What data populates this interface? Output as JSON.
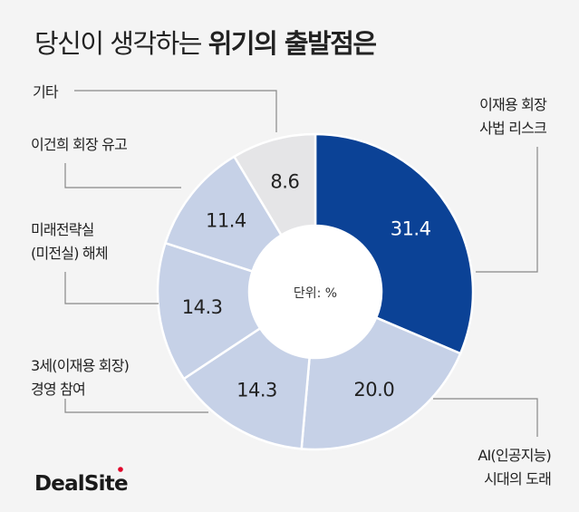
{
  "chart_data": {
    "type": "pie",
    "variant": "donut",
    "title_regular": "당신이 생각하는 ",
    "title_bold": "위기의 출발점은",
    "unit_label": "단위: %",
    "start": "top",
    "direction": "clockwise",
    "slices": [
      {
        "label_lines": [
          "이재용 회장",
          "사법 리스크"
        ],
        "value": 31.4,
        "value_text": "31.4",
        "color": "#0b4296"
      },
      {
        "label_lines": [
          "AI(인공지능)",
          "시대의 도래"
        ],
        "value": 20.0,
        "value_text": "20.0",
        "color": "#c6d1e7"
      },
      {
        "label_lines": [
          "3세(이재용 회장)",
          "경영 참여"
        ],
        "value": 14.3,
        "value_text": "14.3",
        "color": "#c6d1e7"
      },
      {
        "label_lines": [
          "미래전략실",
          "(미전실) 해체"
        ],
        "value": 14.3,
        "value_text": "14.3",
        "color": "#c6d1e7"
      },
      {
        "label_lines": [
          "이건희 회장 유고"
        ],
        "value": 11.4,
        "value_text": "11.4",
        "color": "#c6d1e7"
      },
      {
        "label_lines": [
          "기타"
        ],
        "value": 8.6,
        "value_text": "8.6",
        "color": "#e5e5e7"
      }
    ]
  },
  "logo": {
    "text": "DealSite",
    "dot_color": "#e0002a"
  }
}
